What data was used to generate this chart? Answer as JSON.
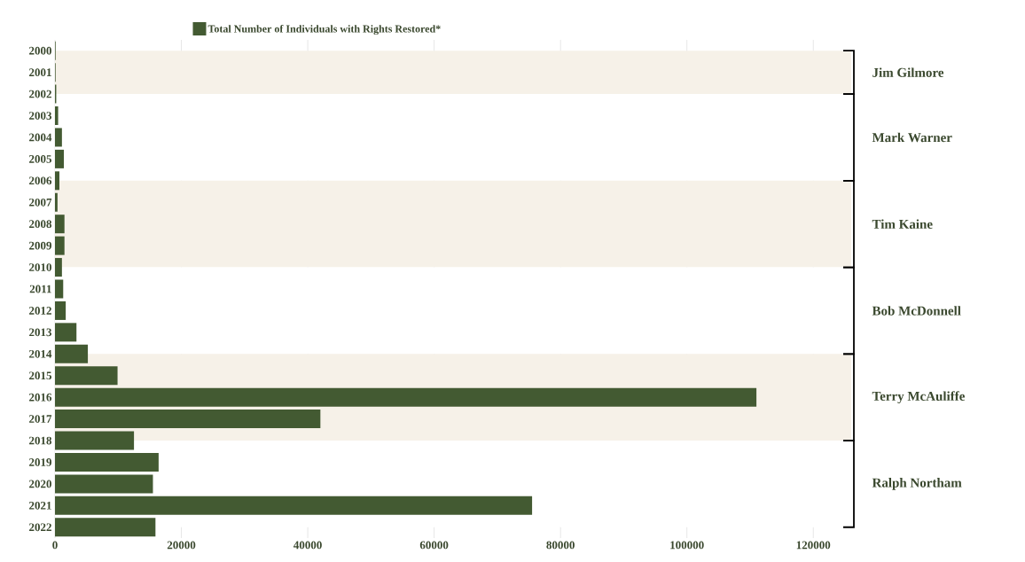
{
  "chart_data": {
    "type": "bar",
    "orientation": "horizontal",
    "categories": [
      "2000",
      "2001",
      "2002",
      "2003",
      "2004",
      "2005",
      "2006",
      "2007",
      "2008",
      "2009",
      "2010",
      "2011",
      "2012",
      "2013",
      "2014",
      "2015",
      "2016",
      "2017",
      "2018",
      "2019",
      "2020",
      "2021",
      "2022"
    ],
    "series": [
      {
        "name": "Total Number of Individuals with Rights Restored*",
        "color": "#435a32",
        "values": [
          100,
          100,
          200,
          500,
          1100,
          1400,
          700,
          400,
          1500,
          1500,
          1100,
          1300,
          1700,
          3400,
          5200,
          9900,
          111000,
          42000,
          12500,
          16400,
          15500,
          75500,
          15900
        ]
      }
    ],
    "xlim": [
      0,
      126000
    ],
    "xticks": [
      0,
      20000,
      40000,
      60000,
      80000,
      100000,
      120000
    ],
    "grid": "x",
    "legend": "top",
    "bands": [
      {
        "axis": "y",
        "from": "2000",
        "to": "2002",
        "label": "Jim Gilmore",
        "color": "#f6f1e8"
      },
      {
        "axis": "y",
        "from": "2002",
        "to": "2006",
        "label": "Mark Warner",
        "color": "#ffffff"
      },
      {
        "axis": "y",
        "from": "2006",
        "to": "2010",
        "label": "Tim Kaine",
        "color": "#f6f1e8"
      },
      {
        "axis": "y",
        "from": "2010",
        "to": "2014",
        "label": "Bob McDonnell",
        "color": "#ffffff"
      },
      {
        "axis": "y",
        "from": "2014",
        "to": "2018",
        "label": "Terry McAuliffe",
        "color": "#f6f1e8"
      },
      {
        "axis": "y",
        "from": "2018",
        "to": "2022",
        "label": "Ralph Northam",
        "color": "#ffffff"
      }
    ]
  }
}
